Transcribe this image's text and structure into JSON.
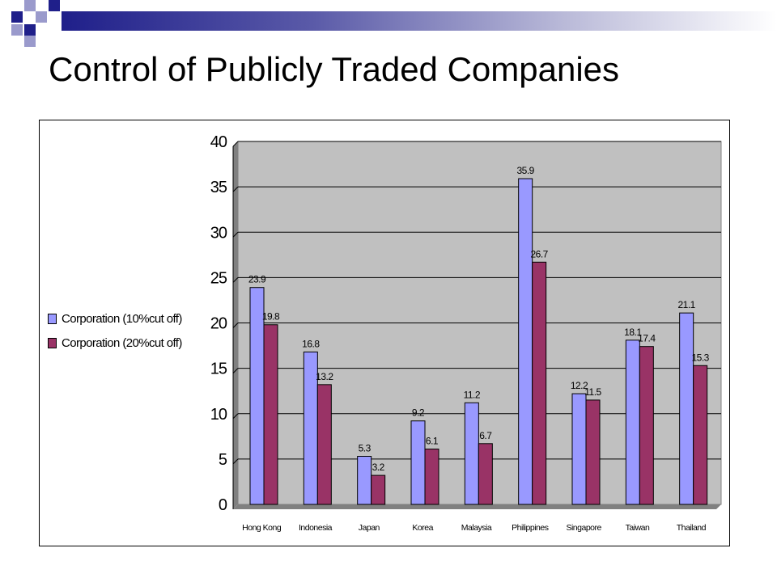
{
  "slide": {
    "title": "Control of Publicly Traded Companies"
  },
  "colors": {
    "series1": "#9999ff",
    "series2": "#993366",
    "plot_bg": "#c0c0c0",
    "gridline": "#000000",
    "deco_dark": "#1f1f8a",
    "deco_light": "#9a9acc"
  },
  "chart_data": {
    "type": "bar",
    "categories": [
      "Hong Kong",
      "Indonesia",
      "Japan",
      "Korea",
      "Malaysia",
      "Philippines",
      "Singapore",
      "Taiwan",
      "Thailand"
    ],
    "series": [
      {
        "name": "Corporation (10%cut off)",
        "values": [
          23.9,
          16.8,
          5.3,
          9.2,
          11.2,
          35.9,
          12.2,
          18.1,
          21.1
        ],
        "color": "#9999ff"
      },
      {
        "name": "Corporation (20%cut off)",
        "values": [
          19.8,
          13.2,
          3.2,
          6.1,
          6.7,
          26.7,
          11.5,
          17.4,
          15.3
        ],
        "color": "#993366"
      }
    ],
    "value_labels": [
      [
        "23.9",
        "16.8",
        "5.3",
        "9.2",
        "11.2",
        "35.9",
        "12.2",
        "18.1",
        "21.1"
      ],
      [
        "19.8",
        "13.2",
        "3.2",
        "6.1",
        "6.7",
        "26.7",
        "11.5",
        "17.4",
        "15.3"
      ]
    ],
    "ylim": [
      0,
      40
    ],
    "yticks": [
      "0",
      "5",
      "10",
      "15",
      "20",
      "25",
      "30",
      "35",
      "40"
    ],
    "ytick_values": [
      0,
      5,
      10,
      15,
      20,
      25,
      30,
      35,
      40
    ],
    "grid": true,
    "legend_position": "left",
    "xlabel": "",
    "ylabel": ""
  }
}
